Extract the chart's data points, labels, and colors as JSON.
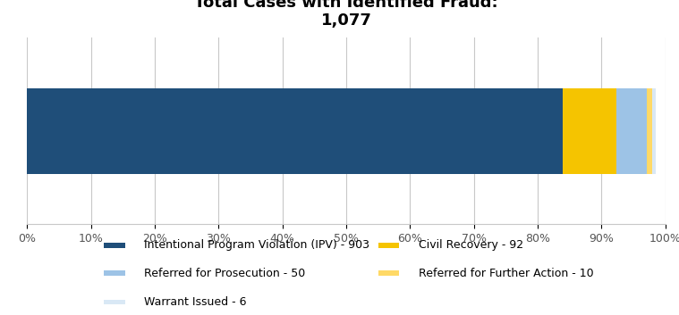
{
  "title_line1": "Total Cases with Identified Fraud:",
  "title_line2": "1,077",
  "total": 1077,
  "categories": [
    "Intentional Program Violation (IPV) - 903",
    "Civil Recovery - 92",
    "Referred for Prosecution - 50",
    "Referred for Further Action - 10",
    "Warrant Issued - 6"
  ],
  "values": [
    903,
    92,
    50,
    10,
    6
  ],
  "colors": [
    "#1F4E79",
    "#F5C400",
    "#9DC3E6",
    "#FFD966",
    "#D9E8F5"
  ],
  "background_color": "#FFFFFF",
  "grid_color": "#C8C8C8",
  "xlim": [
    0,
    1
  ],
  "xtick_labels": [
    "0%",
    "10%",
    "20%",
    "30%",
    "40%",
    "50%",
    "60%",
    "70%",
    "80%",
    "90%",
    "100%"
  ],
  "xtick_positions": [
    0.0,
    0.1,
    0.2,
    0.3,
    0.4,
    0.5,
    0.6,
    0.7,
    0.8,
    0.9,
    1.0
  ],
  "title_fontsize": 13,
  "legend_fontsize": 9,
  "bar_height": 0.55,
  "legend_rows": [
    [
      0,
      1
    ],
    [
      2,
      3
    ],
    [
      4
    ]
  ]
}
